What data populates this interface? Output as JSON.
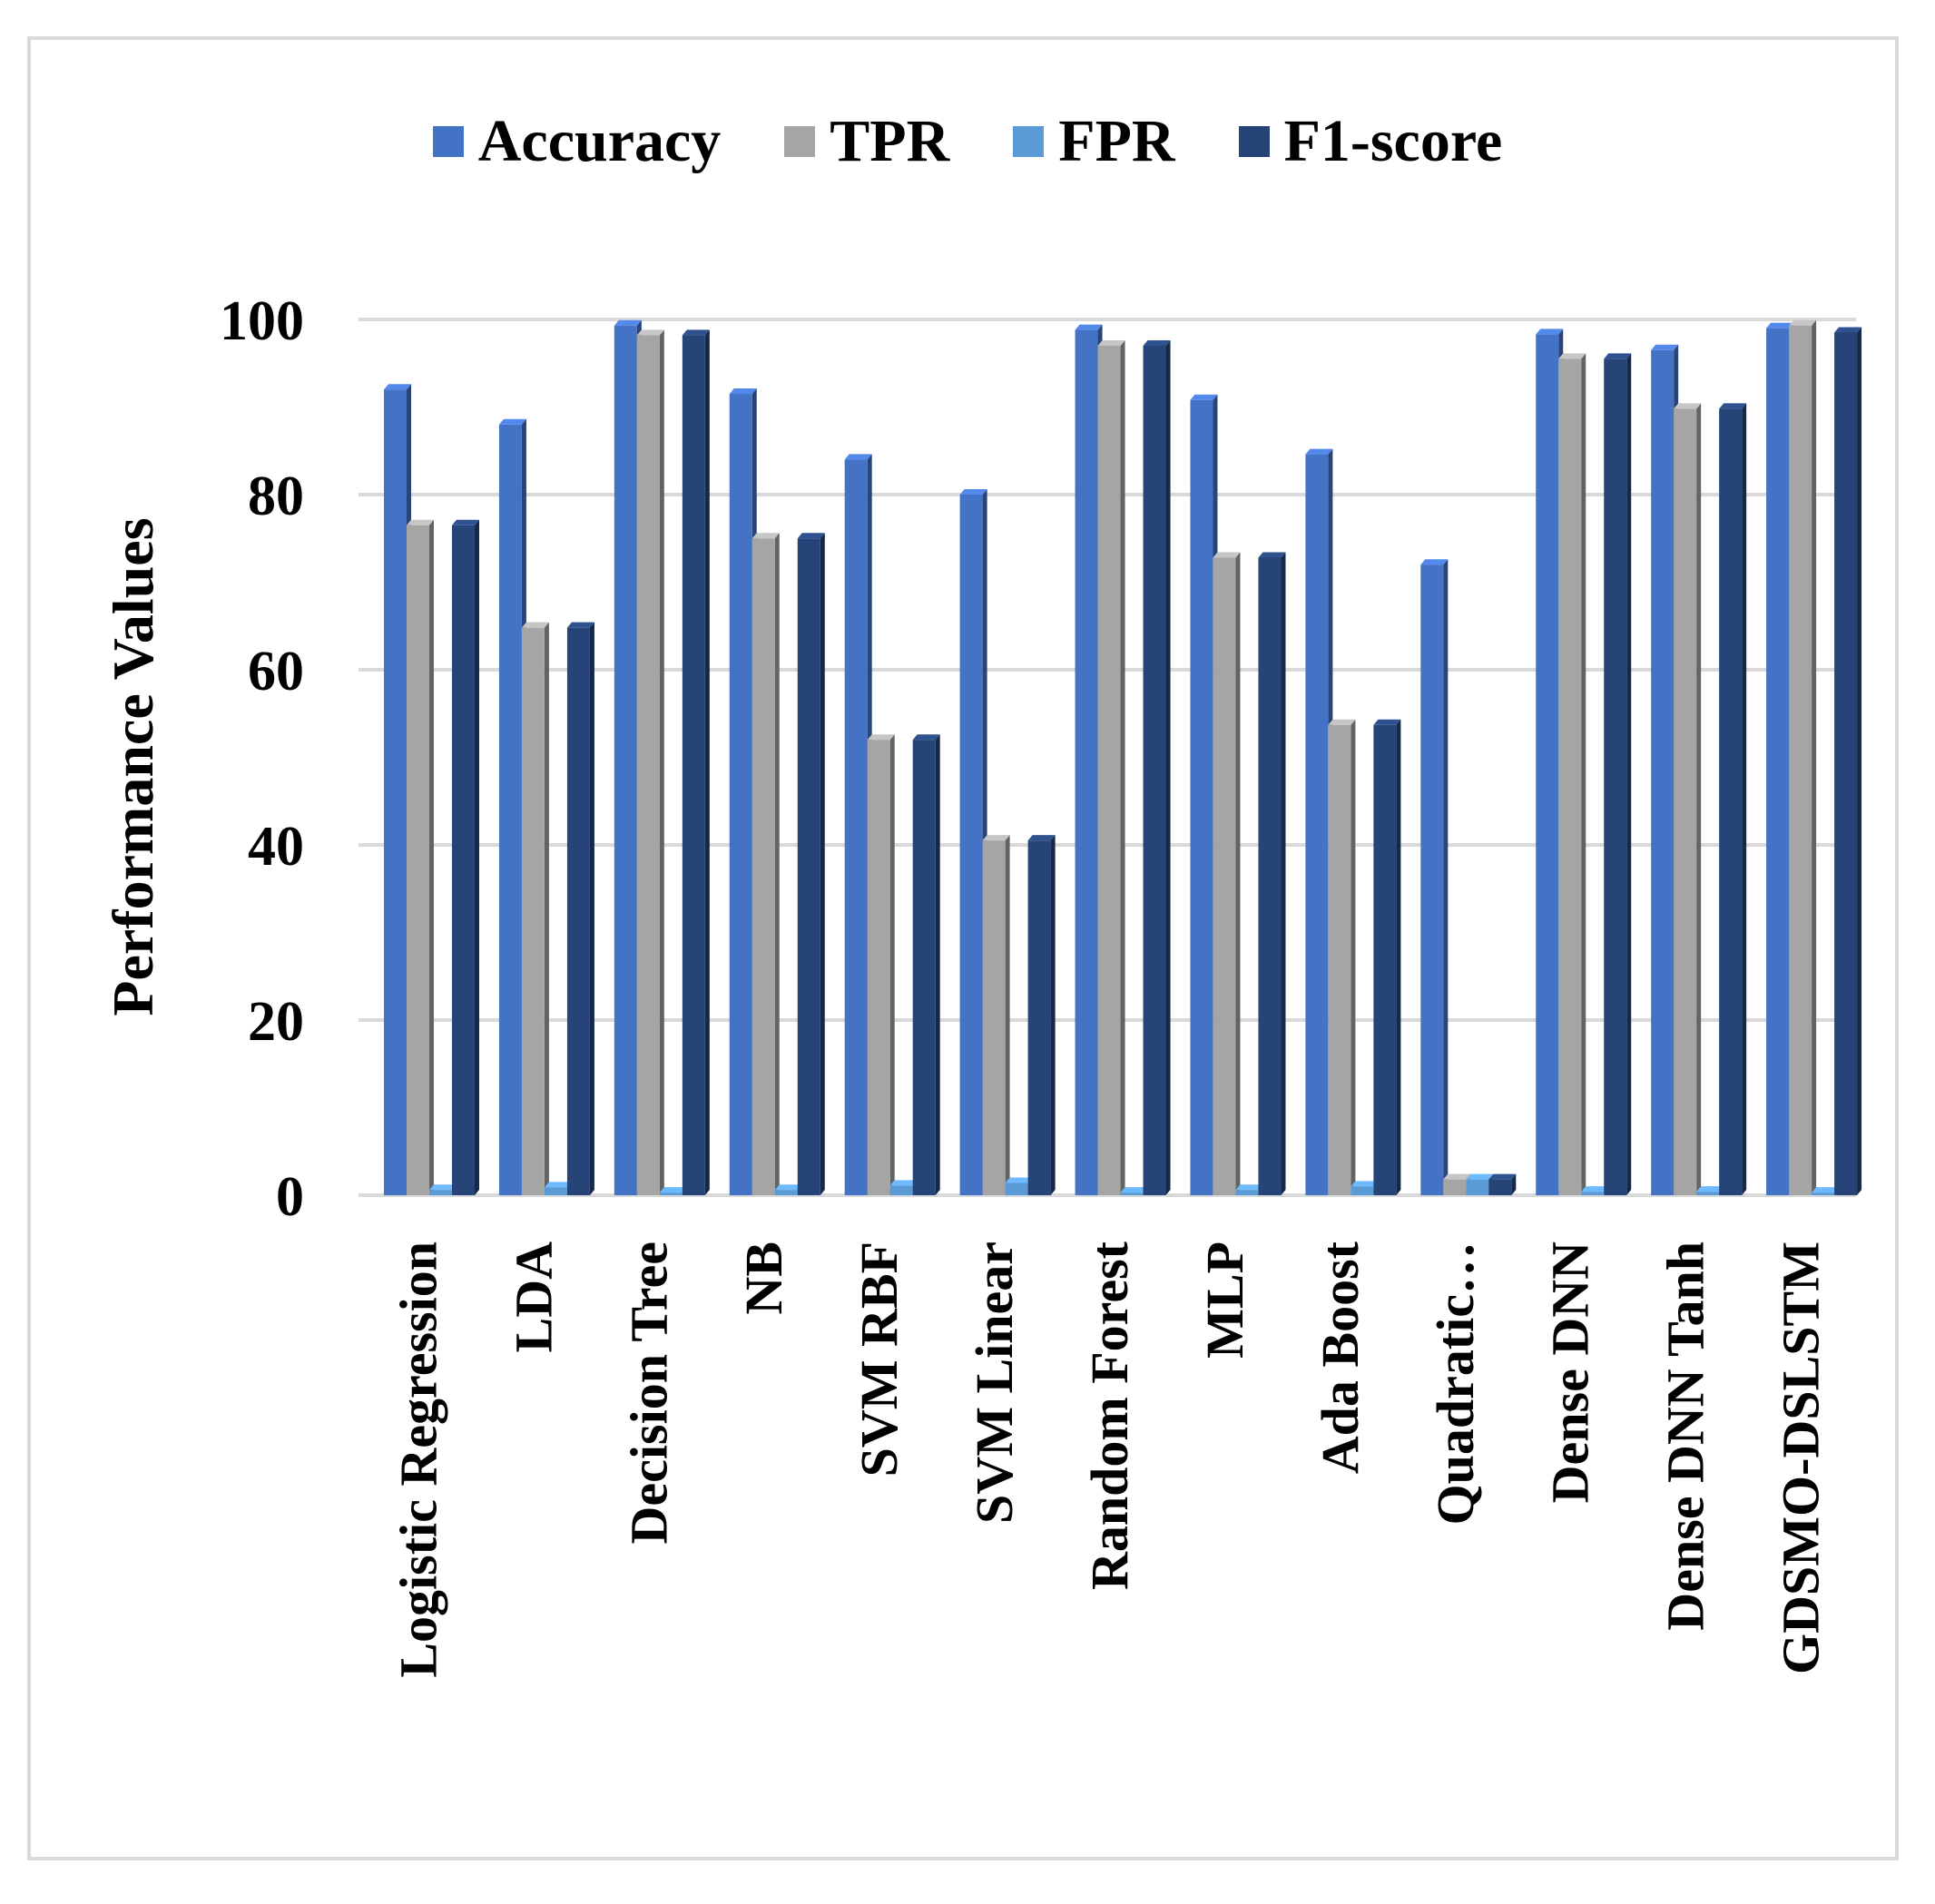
{
  "chart_data": {
    "type": "bar",
    "title": "",
    "xlabel": "",
    "ylabel": "Performance Values",
    "ylim": [
      0,
      100
    ],
    "yticks": [
      0,
      20,
      40,
      60,
      80,
      100
    ],
    "grid": true,
    "legend_position": "top",
    "categories": [
      "Logistic Regression",
      "LDA",
      "Decision Tree",
      "NB",
      "SVM RBF",
      "SVM Linear",
      "Random Forest",
      "MLP",
      "Ada Boost",
      "Quadratic…",
      "Dense DNN",
      "Dense DNN Tanh",
      "GDSMO-DSLSTM"
    ],
    "series": [
      {
        "name": "Accuracy",
        "color": "#4472c4",
        "values": [
          92,
          88,
          99.3,
          91.5,
          84,
          80,
          98.8,
          90.8,
          84.6,
          72,
          98.3,
          96.5,
          99
        ]
      },
      {
        "name": "TPR",
        "color": "#a5a5a5",
        "values": [
          76.5,
          64.8,
          98.2,
          75,
          52,
          40.5,
          97,
          72.8,
          53.7,
          1.8,
          95.5,
          89.8,
          99.3
        ]
      },
      {
        "name": "FPR",
        "color": "#5b9bd5",
        "values": [
          0.6,
          0.9,
          0.3,
          0.6,
          1.1,
          1.4,
          0.3,
          0.6,
          1.0,
          1.8,
          0.4,
          0.4,
          0.3
        ]
      },
      {
        "name": "F1-score",
        "color": "#264478",
        "values": [
          76.5,
          64.8,
          98.2,
          75,
          52,
          40.5,
          97,
          72.8,
          53.7,
          1.8,
          95.5,
          89.8,
          98.5
        ]
      }
    ]
  }
}
